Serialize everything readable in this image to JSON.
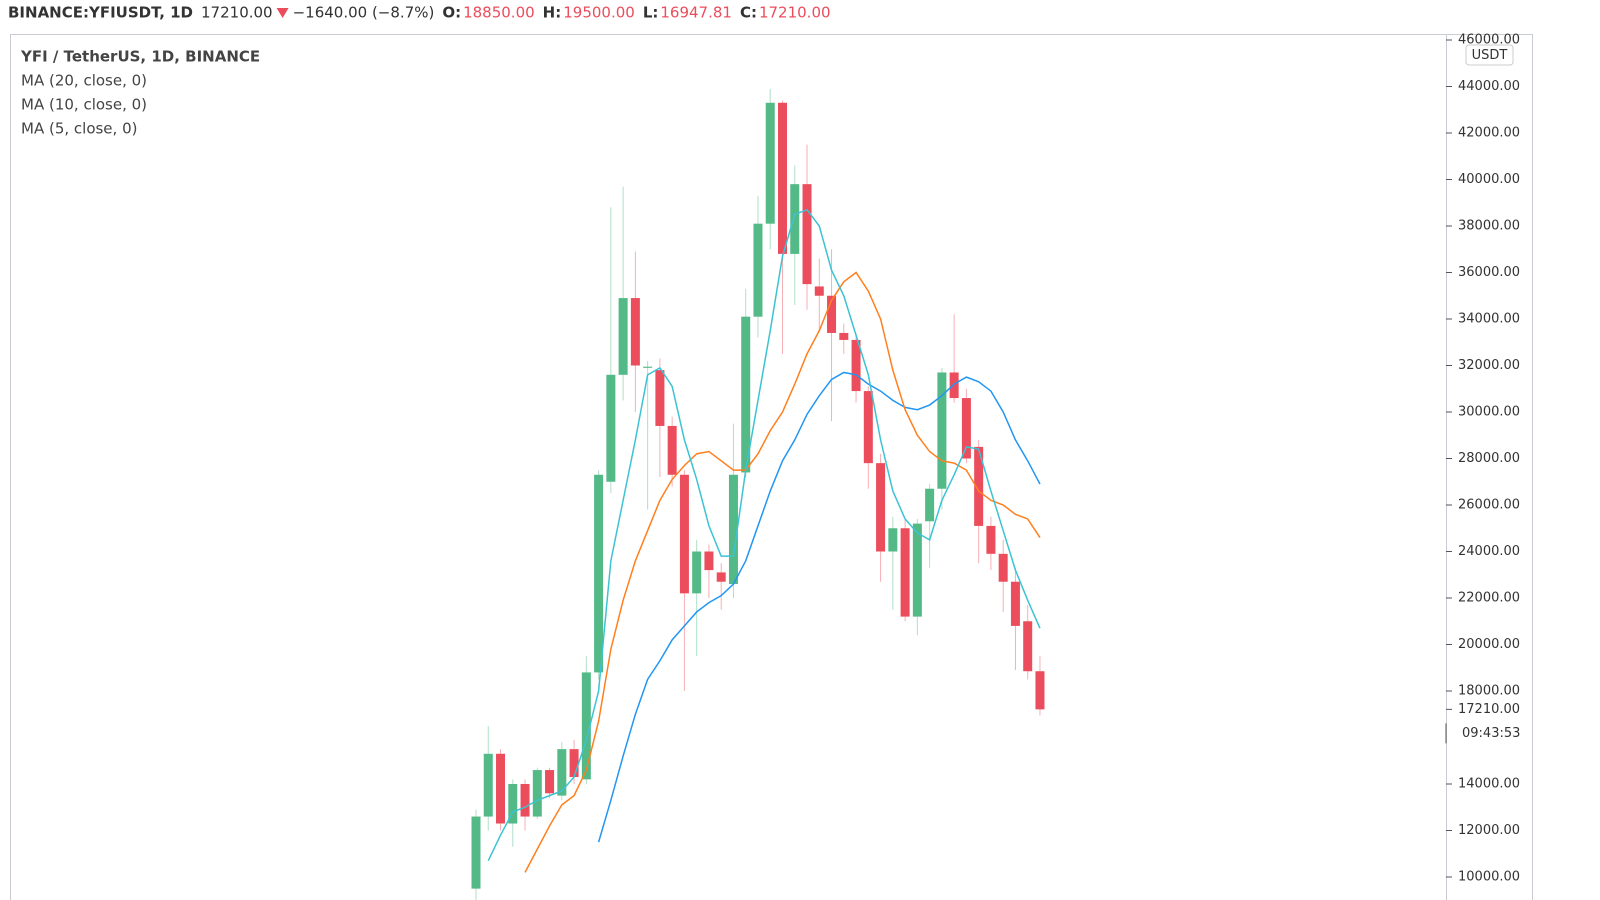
{
  "header": {
    "symbol": "BINANCE:YFIUSDT, 1D",
    "last": "17210.00",
    "change": "−1640.00 (−8.7%)",
    "ohlc": [
      {
        "label": "O:",
        "value": "18850.00"
      },
      {
        "label": "H:",
        "value": "19500.00"
      },
      {
        "label": "L:",
        "value": "16947.81"
      },
      {
        "label": "C:",
        "value": "17210.00"
      }
    ]
  },
  "chart_data": {
    "type": "candlestick",
    "title": "YFI / TetherUS, 1D, BINANCE",
    "currency": "USDT",
    "up_color": "#53b987",
    "down_color": "#eb4d5c",
    "open": [
      9500,
      12600,
      15300,
      12300,
      14000,
      12600,
      14600,
      13500,
      15500,
      14200,
      18800,
      27000,
      31600,
      34900,
      31900,
      31800,
      29400,
      27300,
      22200,
      24000,
      23100,
      22600,
      27400,
      34100,
      38100,
      43300,
      36800,
      39800,
      35400,
      35000,
      33400,
      33100,
      30900,
      27800,
      24000,
      25000,
      21200,
      25300,
      26700,
      31700,
      30600,
      28500,
      25100,
      23900,
      22700,
      21000,
      18850
    ],
    "high": [
      12900,
      16500,
      15500,
      14200,
      14200,
      14700,
      14700,
      15800,
      15900,
      19500,
      27500,
      38800,
      39700,
      36900,
      32200,
      32300,
      29800,
      27500,
      24500,
      24300,
      23500,
      29500,
      35300,
      39300,
      43900,
      43400,
      40600,
      41500,
      36600,
      37000,
      33800,
      33400,
      31100,
      28200,
      25500,
      25400,
      25400,
      26900,
      31900,
      34200,
      31000,
      28800,
      25500,
      24500,
      23300,
      21700,
      19500
    ],
    "low": [
      9000,
      12000,
      12000,
      11300,
      12000,
      12500,
      13400,
      13300,
      14000,
      14000,
      18500,
      26500,
      30500,
      30000,
      25800,
      27200,
      26800,
      18000,
      19500,
      22000,
      21500,
      22000,
      27200,
      33200,
      37000,
      32500,
      34600,
      34400,
      33500,
      29600,
      32500,
      30400,
      26700,
      22700,
      21500,
      21000,
      20400,
      23300,
      25800,
      30400,
      27800,
      23500,
      23200,
      21400,
      18900,
      18500,
      16947.81
    ],
    "close": [
      12600,
      15300,
      12300,
      14000,
      12600,
      14600,
      13600,
      15500,
      14300,
      18800,
      27300,
      31600,
      34900,
      32000,
      31950,
      29400,
      27300,
      22200,
      24000,
      23200,
      22700,
      27300,
      34100,
      38100,
      43300,
      36800,
      39800,
      35500,
      35000,
      33400,
      33100,
      30900,
      27800,
      24000,
      25000,
      21200,
      25200,
      26700,
      31700,
      30600,
      28000,
      25100,
      23900,
      22700,
      20800,
      18850,
      17210
    ],
    "series": [
      {
        "name": "MA (20, close, 0)",
        "color": "#2196f3",
        "values": [
          null,
          null,
          null,
          null,
          null,
          null,
          null,
          null,
          null,
          null,
          11500,
          13300,
          15200,
          17000,
          18500,
          19300,
          20200,
          20800,
          21400,
          21800,
          22100,
          22600,
          23600,
          25100,
          26600,
          27900,
          28800,
          29900,
          30700,
          31400,
          31700,
          31600,
          31200,
          30900,
          30500,
          30200,
          30100,
          30300,
          30700,
          31200,
          31500,
          31300,
          30900,
          30000,
          28800,
          27900,
          26900
        ]
      },
      {
        "name": "MA (10, close, 0)",
        "color": "#ff7f1e",
        "values": [
          null,
          null,
          null,
          null,
          10200,
          11200,
          12200,
          13100,
          13500,
          14600,
          16700,
          19800,
          21900,
          23600,
          24900,
          26200,
          27100,
          27700,
          28200,
          28300,
          27900,
          27500,
          27500,
          28200,
          29200,
          30000,
          31200,
          32500,
          33500,
          34800,
          35600,
          36000,
          35200,
          34000,
          31800,
          30100,
          29000,
          28300,
          27900,
          27800,
          27500,
          26600,
          26200,
          26000,
          25600,
          25400,
          24600
        ]
      },
      {
        "name": "MA (5, close, 0)",
        "color": "#3cc3d3",
        "values": [
          null,
          10700,
          11800,
          12800,
          13000,
          13300,
          13500,
          13700,
          14300,
          15900,
          18000,
          23600,
          26200,
          28800,
          31600,
          31900,
          31100,
          28800,
          27100,
          25100,
          23800,
          23800,
          27500,
          30500,
          33500,
          36700,
          38500,
          38700,
          38000,
          36100,
          35000,
          33300,
          31600,
          28800,
          26600,
          25400,
          24800,
          24500,
          26200,
          27300,
          28500,
          28400,
          26600,
          24900,
          23200,
          21900,
          20700
        ]
      }
    ],
    "ylim": [
      10000,
      46000
    ],
    "yticks": [
      {
        "value": 10000,
        "label": "10000.00"
      },
      {
        "value": 12000,
        "label": "12000.00"
      },
      {
        "value": 14000,
        "label": "14000.00"
      },
      {
        "value": 18000,
        "label": "18000.00"
      },
      {
        "value": 20000,
        "label": "20000.00"
      },
      {
        "value": 22000,
        "label": "22000.00"
      },
      {
        "value": 24000,
        "label": "24000.00"
      },
      {
        "value": 26000,
        "label": "26000.00"
      },
      {
        "value": 28000,
        "label": "28000.00"
      },
      {
        "value": 30000,
        "label": "30000.00"
      },
      {
        "value": 32000,
        "label": "32000.00"
      },
      {
        "value": 34000,
        "label": "34000.00"
      },
      {
        "value": 36000,
        "label": "36000.00"
      },
      {
        "value": 38000,
        "label": "38000.00"
      },
      {
        "value": 40000,
        "label": "40000.00"
      },
      {
        "value": 42000,
        "label": "42000.00"
      },
      {
        "value": 44000,
        "label": "44000.00"
      },
      {
        "value": 46000,
        "label": "46000.00"
      }
    ],
    "last_price": {
      "value": 17210,
      "label": "17210.00"
    },
    "countdown": "09:43:53"
  }
}
